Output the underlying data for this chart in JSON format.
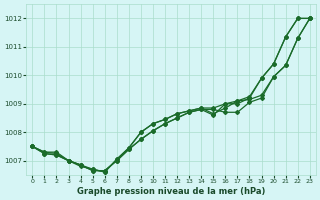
{
  "title": "Graphe pression niveau de la mer (hPa)",
  "bg_color": "#d6f5f5",
  "grid_color": "#aaddcc",
  "line_color": "#1a6b2a",
  "ylim": [
    1006.5,
    1012.5
  ],
  "xlim": [
    -0.5,
    23.5
  ],
  "yticks": [
    1007,
    1008,
    1009,
    1010,
    1011,
    1012
  ],
  "xticks": [
    0,
    1,
    2,
    3,
    4,
    5,
    6,
    7,
    8,
    9,
    10,
    11,
    12,
    13,
    14,
    15,
    16,
    17,
    18,
    19,
    20,
    21,
    22,
    23
  ],
  "s1": [
    1007.5,
    1007.3,
    1007.3,
    1007.0,
    1006.8,
    1006.7,
    1006.6,
    1007.05,
    1007.45,
    1008.0,
    1008.3,
    1008.45,
    1008.65,
    1008.75,
    1008.85,
    1008.65,
    1008.85,
    1009.1,
    1009.25,
    1009.9,
    1010.4,
    1011.35,
    1012.0,
    1012.0
  ],
  "s2": [
    1007.5,
    1007.25,
    1007.2,
    1007.0,
    1006.85,
    1006.65,
    1006.65,
    1007.0,
    1007.4,
    1007.75,
    1008.05,
    1008.3,
    1008.5,
    1008.7,
    1008.8,
    1008.6,
    1009.0,
    1009.1,
    1009.15,
    1009.3,
    1009.95,
    1010.35,
    1011.3,
    1012.0
  ],
  "s3": [
    1007.5,
    1007.25,
    1007.2,
    1007.0,
    1006.85,
    1006.65,
    1006.65,
    1007.0,
    1007.4,
    1007.75,
    1008.05,
    1008.3,
    1008.5,
    1008.7,
    1008.8,
    1008.8,
    1008.7,
    1008.7,
    1009.05,
    1009.2,
    1009.95,
    1010.35,
    1011.3,
    1012.0
  ],
  "s4": [
    1007.5,
    1007.3,
    1007.25,
    1007.0,
    1006.85,
    1006.7,
    1006.6,
    1007.05,
    1007.45,
    1008.0,
    1008.3,
    1008.45,
    1008.65,
    1008.75,
    1008.85,
    1008.85,
    1009.0,
    1009.0,
    1009.2,
    1009.9,
    1010.4,
    1011.35,
    1012.0,
    1012.0
  ]
}
